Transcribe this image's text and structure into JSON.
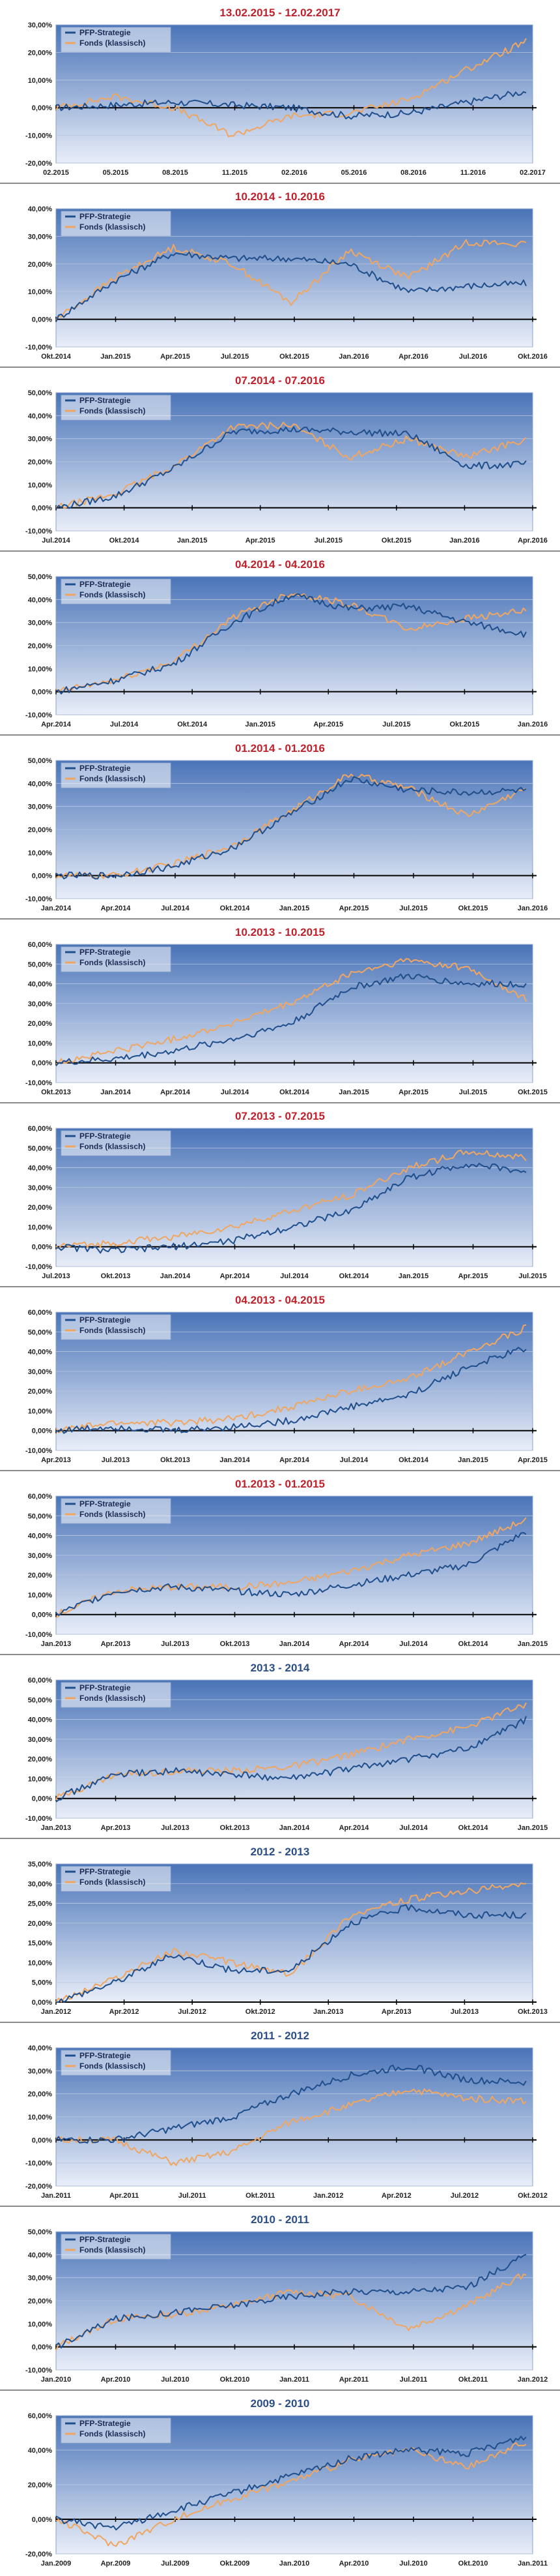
{
  "colors": {
    "title_red": "#c0202a",
    "title_blue": "#2b4e86",
    "pfp_line": "#1f4e8c",
    "fonds_line": "#f0a660",
    "plot_bg_top": "#4a74b8",
    "plot_bg_bottom": "#e9eef8"
  },
  "legend": {
    "series_1": "PFP-Strategie",
    "series_2": "Fonds (klassisch)"
  },
  "chart_data": [
    {
      "type": "line",
      "title": "13.02.2015 - 12.02.2017",
      "title_color": "red",
      "y_ticks": [
        "30,00%",
        "20,00%",
        "10,00%",
        "0,00%",
        "-10,00%",
        "-20,00%"
      ],
      "ylim": [
        -20,
        30
      ],
      "x_ticks": [
        "02.2015",
        "05.2015",
        "08.2015",
        "11.2015",
        "02.2016",
        "05.2016",
        "08.2016",
        "11.2016",
        "02.2017"
      ],
      "series": [
        {
          "name": "PFP-Strategie",
          "x": [
            0,
            1,
            2,
            3,
            4,
            5,
            6,
            7,
            8
          ],
          "values": [
            0,
            1,
            2,
            1,
            0,
            -3,
            -2,
            2,
            6
          ]
        },
        {
          "name": "Fonds (klassisch)",
          "x": [
            0,
            1,
            2,
            3,
            4,
            5,
            6,
            7,
            8
          ],
          "values": [
            0,
            4,
            0,
            -10,
            -3,
            -2,
            3,
            14,
            24
          ]
        }
      ]
    },
    {
      "type": "line",
      "title": "10.2014 - 10.2016",
      "title_color": "red",
      "y_ticks": [
        "40,00%",
        "30,00%",
        "20,00%",
        "10,00%",
        "0,00%",
        "-10,00%"
      ],
      "ylim": [
        -10,
        40
      ],
      "x_ticks": [
        "Okt.2014",
        "Jan.2015",
        "Apr.2015",
        "Jul.2015",
        "Okt.2015",
        "Jan.2016",
        "Apr.2016",
        "Jul.2016",
        "Okt.2016"
      ],
      "series": [
        {
          "name": "PFP-Strategie",
          "x": [
            0,
            1,
            2,
            3,
            4,
            5,
            6,
            7,
            8
          ],
          "values": [
            0,
            14,
            24,
            22,
            22,
            20,
            10,
            12,
            13
          ]
        },
        {
          "name": "Fonds (klassisch)",
          "x": [
            0,
            1,
            2,
            3,
            4,
            5,
            6,
            7,
            8
          ],
          "values": [
            0,
            15,
            26,
            20,
            6,
            25,
            15,
            28,
            27
          ]
        }
      ]
    },
    {
      "type": "line",
      "title": "07.2014 - 07.2016",
      "title_color": "red",
      "y_ticks": [
        "50,00%",
        "40,00%",
        "30,00%",
        "20,00%",
        "10,00%",
        "0,00%",
        "-10,00%"
      ],
      "ylim": [
        -10,
        50
      ],
      "x_ticks": [
        "Jul.2014",
        "Okt.2014",
        "Jan.2015",
        "Apr.2015",
        "Jul.2015",
        "Okt.2015",
        "Jan.2016",
        "Apr.2016"
      ],
      "series": [
        {
          "name": "PFP-Strategie",
          "x": [
            0,
            1,
            2,
            3,
            4,
            5,
            6,
            7,
            8
          ],
          "values": [
            0,
            5,
            17,
            33,
            34,
            33,
            32,
            18,
            19
          ]
        },
        {
          "name": "Fonds (klassisch)",
          "x": [
            0,
            1,
            2,
            3,
            4,
            5,
            6,
            7,
            8
          ],
          "values": [
            0,
            6,
            18,
            35,
            36,
            22,
            30,
            22,
            30
          ]
        }
      ]
    },
    {
      "type": "line",
      "title": "04.2014 - 04.2016",
      "title_color": "red",
      "y_ticks": [
        "50,00%",
        "40,00%",
        "30,00%",
        "20,00%",
        "10,00%",
        "0,00%",
        "-10,00%"
      ],
      "ylim": [
        -10,
        50
      ],
      "x_ticks": [
        "Apr.2014",
        "Jul.2014",
        "Okt.2014",
        "Jan.2015",
        "Apr.2015",
        "Jul.2015",
        "Okt.2015",
        "Jan.2016"
      ],
      "series": [
        {
          "name": "PFP-Strategie",
          "x": [
            0,
            1,
            2,
            3,
            4,
            5,
            6,
            7,
            8
          ],
          "values": [
            0,
            5,
            12,
            30,
            42,
            36,
            37,
            30,
            25
          ]
        },
        {
          "name": "Fonds (klassisch)",
          "x": [
            0,
            1,
            2,
            3,
            4,
            5,
            6,
            7,
            8
          ],
          "values": [
            0,
            5,
            13,
            32,
            43,
            38,
            27,
            32,
            35
          ]
        }
      ]
    },
    {
      "type": "line",
      "title": "01.2014 - 01.2016",
      "title_color": "red",
      "y_ticks": [
        "50,00%",
        "40,00%",
        "30,00%",
        "20,00%",
        "10,00%",
        "0,00%",
        "-10,00%"
      ],
      "ylim": [
        -10,
        50
      ],
      "x_ticks": [
        "Jan.2014",
        "Apr.2014",
        "Jul.2014",
        "Okt.2014",
        "Jan.2015",
        "Apr.2015",
        "Jul.2015",
        "Okt.2015",
        "Jan.2016"
      ],
      "series": [
        {
          "name": "PFP-Strategie",
          "x": [
            0,
            1,
            2,
            3,
            4,
            5,
            6,
            7,
            8
          ],
          "values": [
            0,
            0,
            4,
            12,
            27,
            42,
            37,
            36,
            37
          ]
        },
        {
          "name": "Fonds (klassisch)",
          "x": [
            0,
            1,
            2,
            3,
            4,
            5,
            6,
            7,
            8
          ],
          "values": [
            0,
            0,
            5,
            13,
            28,
            44,
            38,
            26,
            38
          ]
        }
      ]
    },
    {
      "type": "line",
      "title": "10.2013 - 10.2015",
      "title_color": "red",
      "y_ticks": [
        "60,00%",
        "50,00%",
        "40,00%",
        "30,00%",
        "20,00%",
        "10,00%",
        "0,00%",
        "-10,00%"
      ],
      "ylim": [
        -10,
        60
      ],
      "x_ticks": [
        "Okt.2013",
        "Jan.2014",
        "Apr.2014",
        "Jul.2014",
        "Okt.2014",
        "Jan.2015",
        "Apr.2015",
        "Jul.2015",
        "Okt.2015"
      ],
      "series": [
        {
          "name": "PFP-Strategie",
          "x": [
            0,
            1,
            2,
            3,
            4,
            5,
            6,
            7,
            8
          ],
          "values": [
            0,
            2,
            6,
            12,
            20,
            38,
            44,
            40,
            40
          ]
        },
        {
          "name": "Fonds (klassisch)",
          "x": [
            0,
            1,
            2,
            3,
            4,
            5,
            6,
            7,
            8
          ],
          "values": [
            0,
            6,
            12,
            20,
            30,
            45,
            52,
            48,
            32
          ]
        }
      ]
    },
    {
      "type": "line",
      "title": "07.2013 - 07.2015",
      "title_color": "red",
      "y_ticks": [
        "60,00%",
        "50,00%",
        "40,00%",
        "30,00%",
        "20,00%",
        "10,00%",
        "0,00%",
        "-10,00%"
      ],
      "ylim": [
        -10,
        60
      ],
      "x_ticks": [
        "Jul.2013",
        "Okt.2013",
        "Jan.2014",
        "Apr.2014",
        "Jul.2014",
        "Okt.2014",
        "Jan.2015",
        "Apr.2015",
        "Jul.2015"
      ],
      "series": [
        {
          "name": "PFP-Strategie",
          "x": [
            0,
            1,
            2,
            3,
            4,
            5,
            6,
            7,
            8
          ],
          "values": [
            0,
            -2,
            0,
            3,
            10,
            18,
            35,
            42,
            38
          ]
        },
        {
          "name": "Fonds (klassisch)",
          "x": [
            0,
            1,
            2,
            3,
            4,
            5,
            6,
            7,
            8
          ],
          "values": [
            0,
            2,
            5,
            10,
            18,
            26,
            40,
            48,
            45
          ]
        }
      ]
    },
    {
      "type": "line",
      "title": "04.2013 - 04.2015",
      "title_color": "red",
      "y_ticks": [
        "60,00%",
        "50,00%",
        "40,00%",
        "30,00%",
        "20,00%",
        "10,00%",
        "0,00%",
        "-10,00%"
      ],
      "ylim": [
        -10,
        60
      ],
      "x_ticks": [
        "Apr.2013",
        "Jul.2013",
        "Okt.2013",
        "Jan.2014",
        "Apr.2014",
        "Jul.2014",
        "Okt.2014",
        "Jan.2015",
        "Apr.2015"
      ],
      "series": [
        {
          "name": "PFP-Strategie",
          "x": [
            0,
            1,
            2,
            3,
            4,
            5,
            6,
            7,
            8
          ],
          "values": [
            0,
            2,
            0,
            2,
            5,
            12,
            18,
            32,
            42
          ]
        },
        {
          "name": "Fonds (klassisch)",
          "x": [
            0,
            1,
            2,
            3,
            4,
            5,
            6,
            7,
            8
          ],
          "values": [
            0,
            4,
            4,
            6,
            12,
            20,
            26,
            40,
            52
          ]
        }
      ]
    },
    {
      "type": "line",
      "title": "01.2013 - 01.2015",
      "title_color": "red",
      "y_ticks": [
        "60,00%",
        "50,00%",
        "40,00%",
        "30,00%",
        "20,00%",
        "10,00%",
        "0,00%",
        "-10,00%"
      ],
      "ylim": [
        -10,
        60
      ],
      "x_ticks": [
        "Jan.2013",
        "Apr.2013",
        "Jul.2013",
        "Okt.2013",
        "Jan.2014",
        "Apr.2014",
        "Jul.2014",
        "Okt.2014",
        "Jan.2015"
      ],
      "series": [
        {
          "name": "PFP-Strategie",
          "x": [
            0,
            1,
            2,
            3,
            4,
            5,
            6,
            7,
            8
          ],
          "values": [
            0,
            12,
            14,
            12,
            10,
            15,
            20,
            25,
            42
          ]
        },
        {
          "name": "Fonds (klassisch)",
          "x": [
            0,
            1,
            2,
            3,
            4,
            5,
            6,
            7,
            8
          ],
          "values": [
            0,
            12,
            14,
            14,
            16,
            22,
            30,
            36,
            48
          ]
        }
      ]
    },
    {
      "type": "line",
      "title": "2013 - 2014",
      "title_color": "blue",
      "y_ticks": [
        "60,00%",
        "50,00%",
        "40,00%",
        "30,00%",
        "20,00%",
        "10,00%",
        "0,00%",
        "-10,00%"
      ],
      "ylim": [
        -10,
        60
      ],
      "x_ticks": [
        "Jan.2013",
        "Apr.2013",
        "Jul.2013",
        "Okt.2013",
        "Jan.2014",
        "Apr.2014",
        "Jul.2014",
        "Okt.2014",
        "Jan.2015"
      ],
      "series": [
        {
          "name": "PFP-Strategie",
          "x": [
            0,
            1,
            2,
            3,
            4,
            5,
            6,
            7,
            8
          ],
          "values": [
            0,
            12,
            14,
            12,
            10,
            15,
            20,
            25,
            40
          ]
        },
        {
          "name": "Fonds (klassisch)",
          "x": [
            0,
            1,
            2,
            3,
            4,
            5,
            6,
            7,
            8
          ],
          "values": [
            0,
            12,
            14,
            14,
            16,
            22,
            30,
            36,
            48
          ]
        }
      ]
    },
    {
      "type": "line",
      "title": "2012 - 2013",
      "title_color": "blue",
      "y_ticks": [
        "35,00%",
        "30,00%",
        "25,00%",
        "20,00%",
        "15,00%",
        "10,00%",
        "5,00%",
        "0,00%"
      ],
      "ylim": [
        0,
        35
      ],
      "x_ticks": [
        "Jan.2012",
        "Apr.2012",
        "Jul.2012",
        "Okt.2012",
        "Jan.2013",
        "Apr.2013",
        "Jul.2013",
        "Okt.2013"
      ],
      "series": [
        {
          "name": "PFP-Strategie",
          "x": [
            0,
            1,
            2,
            3,
            4,
            5,
            6,
            7,
            8
          ],
          "values": [
            0,
            5,
            12,
            8,
            8,
            20,
            24,
            22,
            22
          ]
        },
        {
          "name": "Fonds (klassisch)",
          "x": [
            0,
            1,
            2,
            3,
            4,
            5,
            6,
            7,
            8
          ],
          "values": [
            0,
            6,
            13,
            10,
            7,
            22,
            26,
            28,
            30
          ]
        }
      ]
    },
    {
      "type": "line",
      "title": "2011 - 2012",
      "title_color": "blue",
      "y_ticks": [
        "40,00%",
        "30,00%",
        "20,00%",
        "10,00%",
        "0,00%",
        "-10,00%",
        "-20,00%"
      ],
      "ylim": [
        -20,
        40
      ],
      "x_ticks": [
        "Jan.2011",
        "Apr.2011",
        "Jul.2011",
        "Okt.2011",
        "Jan.2012",
        "Apr.2012",
        "Jul.2012",
        "Okt.2012"
      ],
      "series": [
        {
          "name": "PFP-Strategie",
          "x": [
            0,
            1,
            2,
            3,
            4,
            5,
            6,
            7,
            8
          ],
          "values": [
            0,
            0,
            5,
            10,
            20,
            28,
            32,
            26,
            25
          ]
        },
        {
          "name": "Fonds (klassisch)",
          "x": [
            0,
            1,
            2,
            3,
            4,
            5,
            6,
            7,
            8
          ],
          "values": [
            0,
            0,
            -10,
            -5,
            8,
            15,
            22,
            18,
            17
          ]
        }
      ]
    },
    {
      "type": "line",
      "title": "2010 - 2011",
      "title_color": "blue",
      "y_ticks": [
        "50,00%",
        "40,00%",
        "30,00%",
        "20,00%",
        "10,00%",
        "0,00%",
        "-10,00%"
      ],
      "ylim": [
        -10,
        50
      ],
      "x_ticks": [
        "Jan.2010",
        "Apr.2010",
        "Jul.2010",
        "Okt.2010",
        "Jan.2011",
        "Apr.2011",
        "Jul.2011",
        "Okt.2011",
        "Jan.2012"
      ],
      "series": [
        {
          "name": "PFP-Strategie",
          "x": [
            0,
            1,
            2,
            3,
            4,
            5,
            6,
            7,
            8
          ],
          "values": [
            0,
            12,
            15,
            18,
            22,
            24,
            24,
            26,
            40
          ]
        },
        {
          "name": "Fonds (klassisch)",
          "x": [
            0,
            1,
            2,
            3,
            4,
            5,
            6,
            7,
            8
          ],
          "values": [
            0,
            12,
            14,
            18,
            24,
            22,
            8,
            18,
            32
          ]
        }
      ]
    },
    {
      "type": "line",
      "title": "2009 - 2010",
      "title_color": "blue",
      "y_ticks": [
        "60,00%",
        "40,00%",
        "20,00%",
        "0,00%",
        "-20,00%"
      ],
      "ylim": [
        -20,
        60
      ],
      "x_ticks": [
        "Jan.2009",
        "Apr.2009",
        "Jul.2009",
        "Okt.2009",
        "Jan.2010",
        "Apr.2010",
        "Jul.2010",
        "Okt.2010",
        "Jan.2011"
      ],
      "series": [
        {
          "name": "PFP-Strategie",
          "x": [
            0,
            1,
            2,
            3,
            4,
            5,
            6,
            7,
            8
          ],
          "values": [
            0,
            -5,
            5,
            15,
            25,
            35,
            40,
            38,
            48
          ]
        },
        {
          "name": "Fonds (klassisch)",
          "x": [
            0,
            1,
            2,
            3,
            4,
            5,
            6,
            7,
            8
          ],
          "values": [
            0,
            -15,
            0,
            12,
            22,
            34,
            40,
            30,
            45
          ]
        }
      ]
    }
  ]
}
